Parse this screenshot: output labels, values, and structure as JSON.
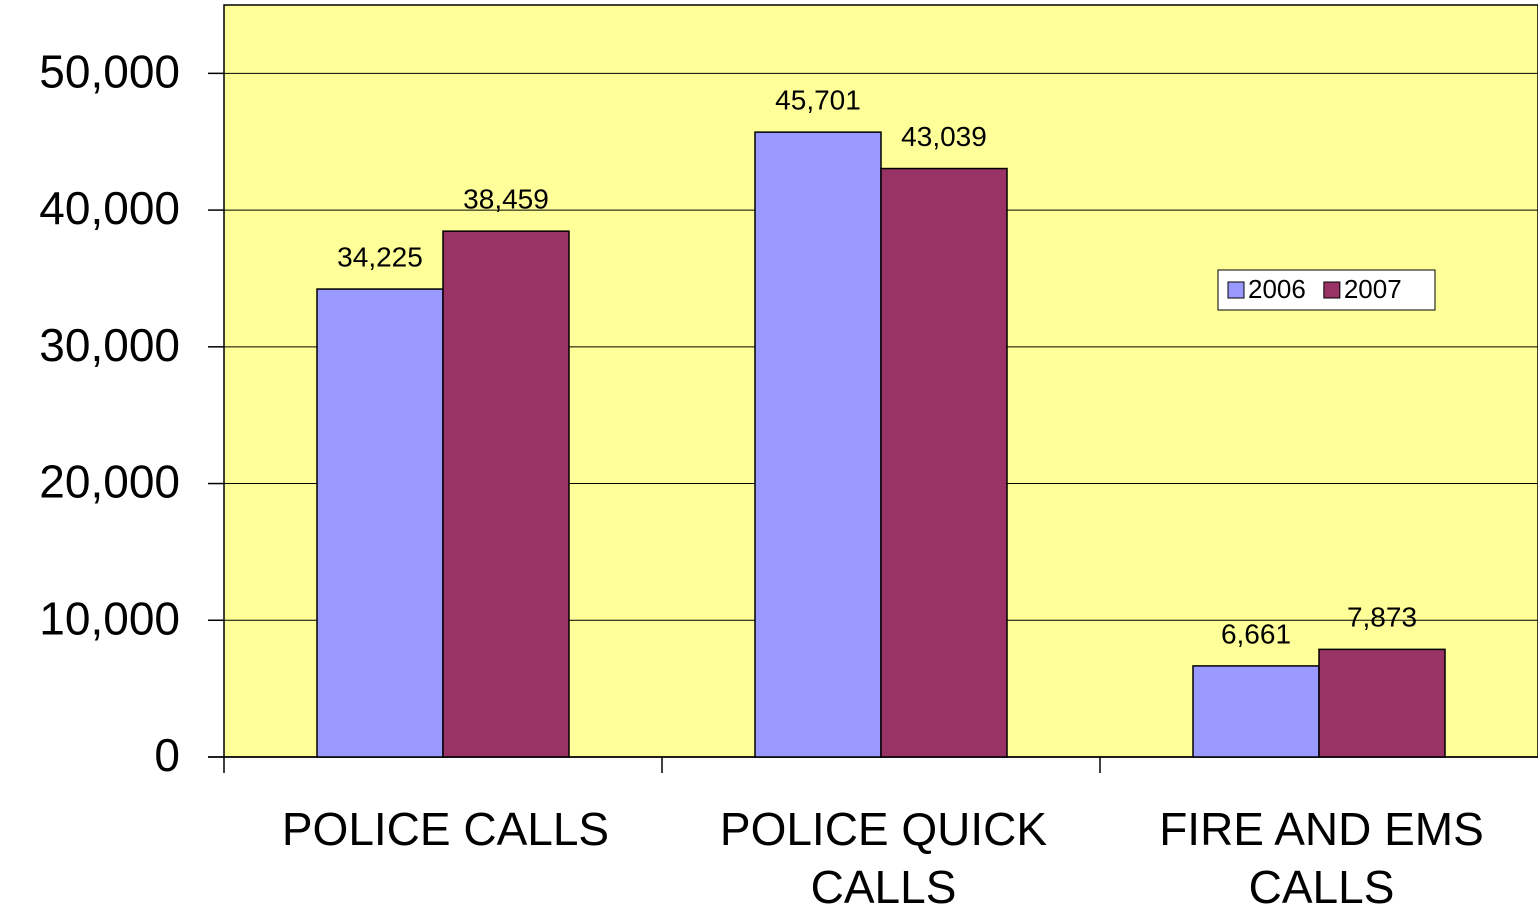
{
  "chart_data": {
    "type": "bar",
    "categories": [
      "POLICE CALLS",
      "POLICE QUICK CALLS",
      "FIRE AND EMS CALLS"
    ],
    "series": [
      {
        "name": "2006",
        "color": "#9999ff",
        "values": [
          34225,
          45701,
          6661
        ],
        "value_labels": [
          "34,225",
          "45,701",
          "6,661"
        ]
      },
      {
        "name": "2007",
        "color": "#993366",
        "values": [
          38459,
          43039,
          7873
        ],
        "value_labels": [
          "38,459",
          "43,039",
          "7,873"
        ]
      }
    ],
    "ylim": [
      0,
      55000
    ],
    "yticks": [
      0,
      {
        "value": 10000,
        "label": "10,000"
      },
      {
        "value": 20000,
        "label": "20,000"
      },
      {
        "value": 30000,
        "label": "30,000"
      },
      {
        "value": 40000,
        "label": "40,000"
      },
      {
        "value": 50000,
        "label": "50,000"
      }
    ],
    "grid": true,
    "background": "#ffff99",
    "legend": "right"
  }
}
